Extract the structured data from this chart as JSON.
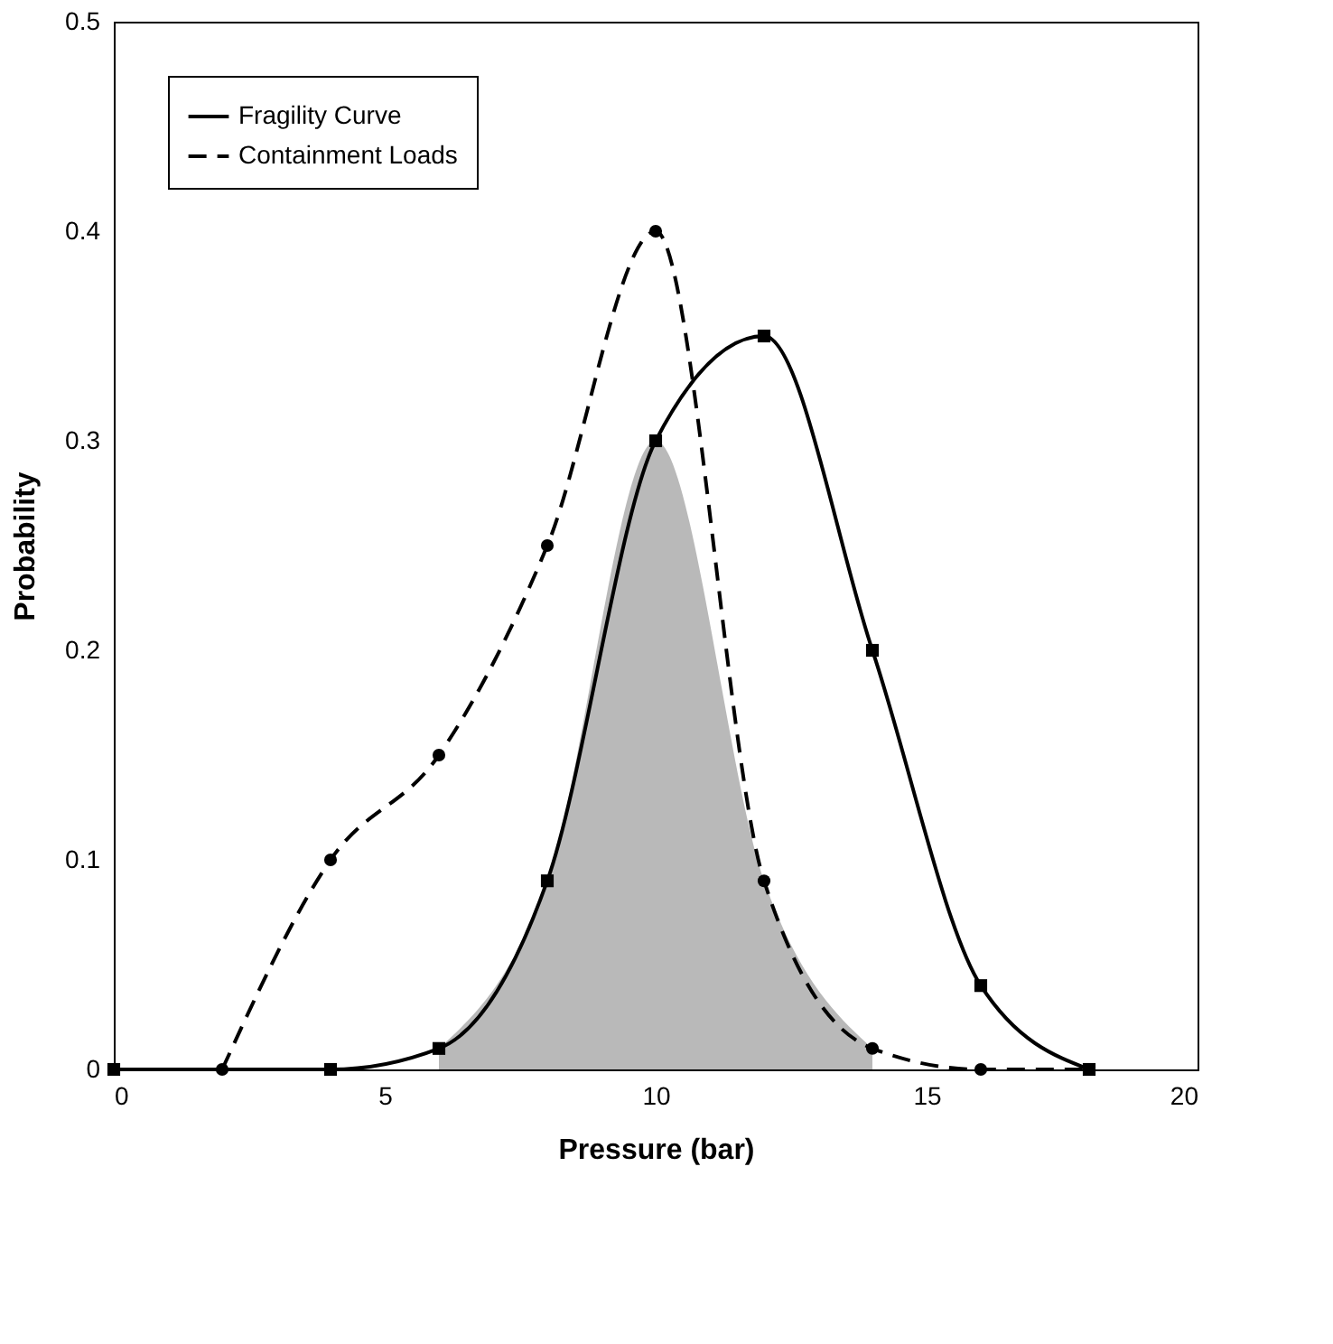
{
  "chart_data": {
    "type": "line",
    "xlabel": "Pressure (bar)",
    "ylabel": "Probability",
    "xlim": [
      0,
      20
    ],
    "xticks": [
      0,
      5,
      10,
      15,
      20
    ],
    "ylim": [
      0,
      0.5
    ],
    "yticks": [
      0,
      0.1,
      0.2,
      0.3,
      0.4,
      0.5
    ],
    "grid": false,
    "legend": "top left",
    "series": [
      {
        "type": "area",
        "color": "#8a8a8a",
        "x": [
          6,
          8,
          10,
          12,
          14
        ],
        "values": [
          0.01,
          0.09,
          0.3,
          0.09,
          0.01
        ]
      },
      {
        "name": "Fragility Curve",
        "color": "#000000",
        "marker": "square",
        "line_style": "solid",
        "x": [
          0,
          4,
          6,
          8,
          10,
          12,
          14,
          16,
          18
        ],
        "values": [
          0,
          0,
          0.01,
          0.09,
          0.3,
          0.35,
          0.2,
          0.04,
          0
        ]
      },
      {
        "name": "Containment Loads",
        "color": "#000000",
        "marker": "circle",
        "line_style": "dashed",
        "x": [
          2,
          4,
          6,
          8,
          10,
          12,
          14,
          16,
          18
        ],
        "values": [
          0,
          0.1,
          0.15,
          0.25,
          0.4,
          0.09,
          0.01,
          0,
          0
        ]
      }
    ]
  }
}
